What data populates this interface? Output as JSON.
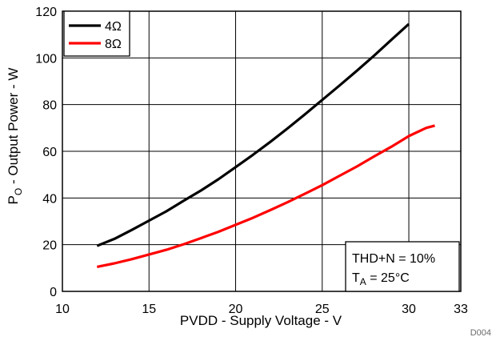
{
  "chart_data": {
    "type": "line",
    "xlabel": "PVDD - Supply Voltage - V",
    "ylabel": {
      "main": "P",
      "subscript": "O",
      "rest": " - Output Power - W"
    },
    "xlim": [
      10,
      33
    ],
    "ylim": [
      0,
      120
    ],
    "x_ticks": [
      10,
      15,
      20,
      25,
      30,
      33
    ],
    "y_ticks": [
      0,
      20,
      40,
      60,
      80,
      100,
      120
    ],
    "x_tick_labels": [
      "10",
      "15",
      "20",
      "25",
      "30",
      "33"
    ],
    "y_tick_labels": [
      "0",
      "20",
      "40",
      "60",
      "80",
      "100",
      "120"
    ],
    "grid": true,
    "legend_position": "top-left",
    "series": [
      {
        "name": "4Ω",
        "color": "#000000",
        "x": [
          12,
          13,
          14,
          15,
          16,
          17,
          18,
          19,
          20,
          21,
          22,
          23,
          24,
          25,
          26,
          27,
          28,
          29,
          30
        ],
        "y": [
          19.5,
          22.5,
          26.3,
          30.3,
          34.3,
          38.8,
          43.2,
          48,
          53.2,
          58.5,
          64,
          69.8,
          75.8,
          82,
          88.2,
          94.5,
          101,
          107.8,
          114.5
        ]
      },
      {
        "name": "8Ω",
        "color": "#ff0000",
        "x": [
          12,
          13,
          14,
          15,
          16,
          17,
          18,
          19,
          20,
          21,
          22,
          23,
          24,
          25,
          26,
          27,
          28,
          29,
          30,
          31,
          31.5
        ],
        "y": [
          10.5,
          12,
          13.8,
          15.8,
          17.8,
          20.2,
          22.8,
          25.5,
          28.5,
          31.5,
          34.8,
          38.2,
          41.8,
          45.5,
          49.5,
          53.5,
          57.8,
          62,
          66.5,
          70,
          71
        ]
      }
    ],
    "annotation": {
      "line1": "THD+N = 10%",
      "line2_main": "T",
      "line2_sub": "A",
      "line2_rest": " = 25°C"
    },
    "figure_id": "D004"
  }
}
